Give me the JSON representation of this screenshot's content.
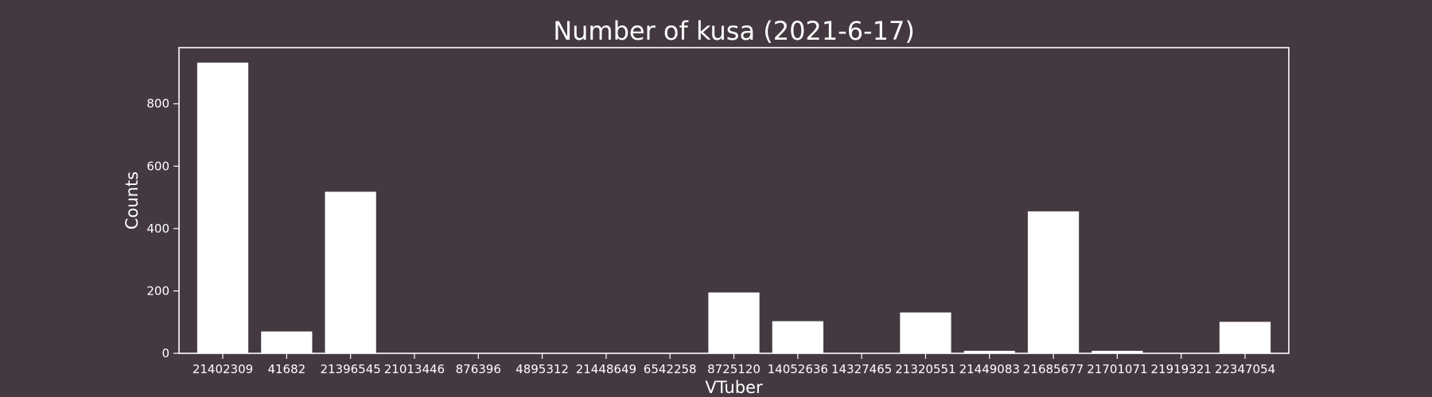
{
  "colors": {
    "background": "#443941",
    "bar": "#ffffff",
    "text": "#ffffff"
  },
  "chart_data": {
    "type": "bar",
    "title": "Number of kusa (2021-6-17)",
    "xlabel": "VTuber",
    "ylabel": "Counts",
    "ylim": [
      0,
      980
    ],
    "yticks": [
      0,
      200,
      400,
      600,
      800
    ],
    "grid": false,
    "legend": "none",
    "categories": [
      "21402309",
      "41682",
      "21396545",
      "21013446",
      "876396",
      "4895312",
      "21448649",
      "6542258",
      "8725120",
      "14052636",
      "14327465",
      "21320551",
      "21449083",
      "21685677",
      "21701071",
      "21919321",
      "22347054"
    ],
    "values": [
      932,
      70,
      518,
      1,
      0,
      0,
      0,
      0,
      195,
      103,
      1,
      131,
      8,
      455,
      8,
      0,
      101
    ]
  }
}
